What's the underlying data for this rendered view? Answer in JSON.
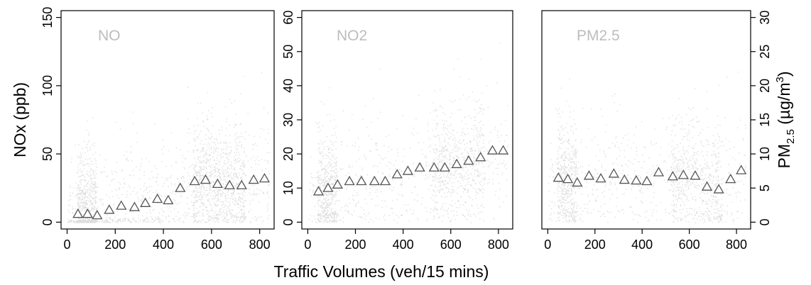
{
  "chart_data": [
    {
      "type": "scatter",
      "panel_label": "NO",
      "ylabel": "NOx (ppb)",
      "xlabel": "Traffic Volumes (veh/15 mins)",
      "xlim": [
        -25,
        860
      ],
      "ylim": [
        -5,
        155
      ],
      "x_ticks": [
        "0",
        "200",
        "400",
        "600",
        "800"
      ],
      "y_ticks": [
        "0",
        "50",
        "100",
        "150"
      ],
      "y_tick_values": [
        0,
        50,
        100,
        150
      ],
      "series": [
        {
          "marker": "triangle",
          "x": [
            45,
            85,
            125,
            175,
            225,
            280,
            325,
            375,
            420,
            470,
            530,
            575,
            625,
            675,
            725,
            775,
            820
          ],
          "y": [
            6,
            6,
            5,
            9,
            12,
            11,
            14,
            17,
            16,
            25,
            30,
            31,
            28,
            27,
            27,
            31,
            32
          ]
        }
      ]
    },
    {
      "type": "scatter",
      "panel_label": "NO2",
      "xlim": [
        -25,
        860
      ],
      "ylim": [
        -2,
        62
      ],
      "x_ticks": [
        "0",
        "200",
        "400",
        "600",
        "800"
      ],
      "y_ticks": [
        "0",
        "10",
        "20",
        "30",
        "40",
        "50",
        "60"
      ],
      "y_tick_values": [
        0,
        10,
        20,
        30,
        40,
        50,
        60
      ],
      "series": [
        {
          "marker": "triangle",
          "x": [
            45,
            85,
            125,
            175,
            225,
            280,
            325,
            375,
            420,
            470,
            530,
            575,
            625,
            675,
            725,
            775,
            820
          ],
          "y": [
            9,
            10,
            11,
            12,
            12,
            12,
            12,
            14,
            15,
            16,
            16,
            16,
            17,
            18,
            19,
            21,
            21
          ]
        }
      ]
    },
    {
      "type": "scatter",
      "panel_label": "PM2.5",
      "ylabel": "PM2.5 (µg/m3)",
      "xlim": [
        -25,
        860
      ],
      "ylim": [
        -1,
        31
      ],
      "x_ticks": [
        "0",
        "200",
        "400",
        "600",
        "800"
      ],
      "y_ticks": [
        "0",
        "5",
        "10",
        "15",
        "20",
        "25",
        "30"
      ],
      "y_tick_values": [
        0,
        5,
        10,
        15,
        20,
        25,
        30
      ],
      "series": [
        {
          "marker": "triangle",
          "x": [
            45,
            85,
            125,
            175,
            225,
            280,
            325,
            375,
            420,
            470,
            530,
            575,
            625,
            675,
            725,
            775,
            820
          ],
          "y": [
            6.5,
            6.3,
            5.8,
            6.8,
            6.4,
            7.1,
            6.2,
            6.1,
            6.0,
            7.3,
            6.7,
            6.9,
            6.8,
            5.2,
            4.8,
            6.3,
            7.6
          ]
        }
      ]
    }
  ],
  "labels": {
    "xlabel": "Traffic Volumes (veh/15 mins)",
    "left_ylabel": "NOx (ppb)",
    "right_ylabel_main": "PM",
    "right_ylabel_sub": "2.5",
    "right_ylabel_unit_pre": " (µg/m",
    "right_ylabel_sup": "3",
    "right_ylabel_unit_post": ")"
  },
  "style": {
    "point_color": "#000000",
    "triangle_stroke": "#555555",
    "triangle_fill": "#ffffff",
    "panel_label_color": "#bdbdbd",
    "axis_color": "#000000"
  }
}
